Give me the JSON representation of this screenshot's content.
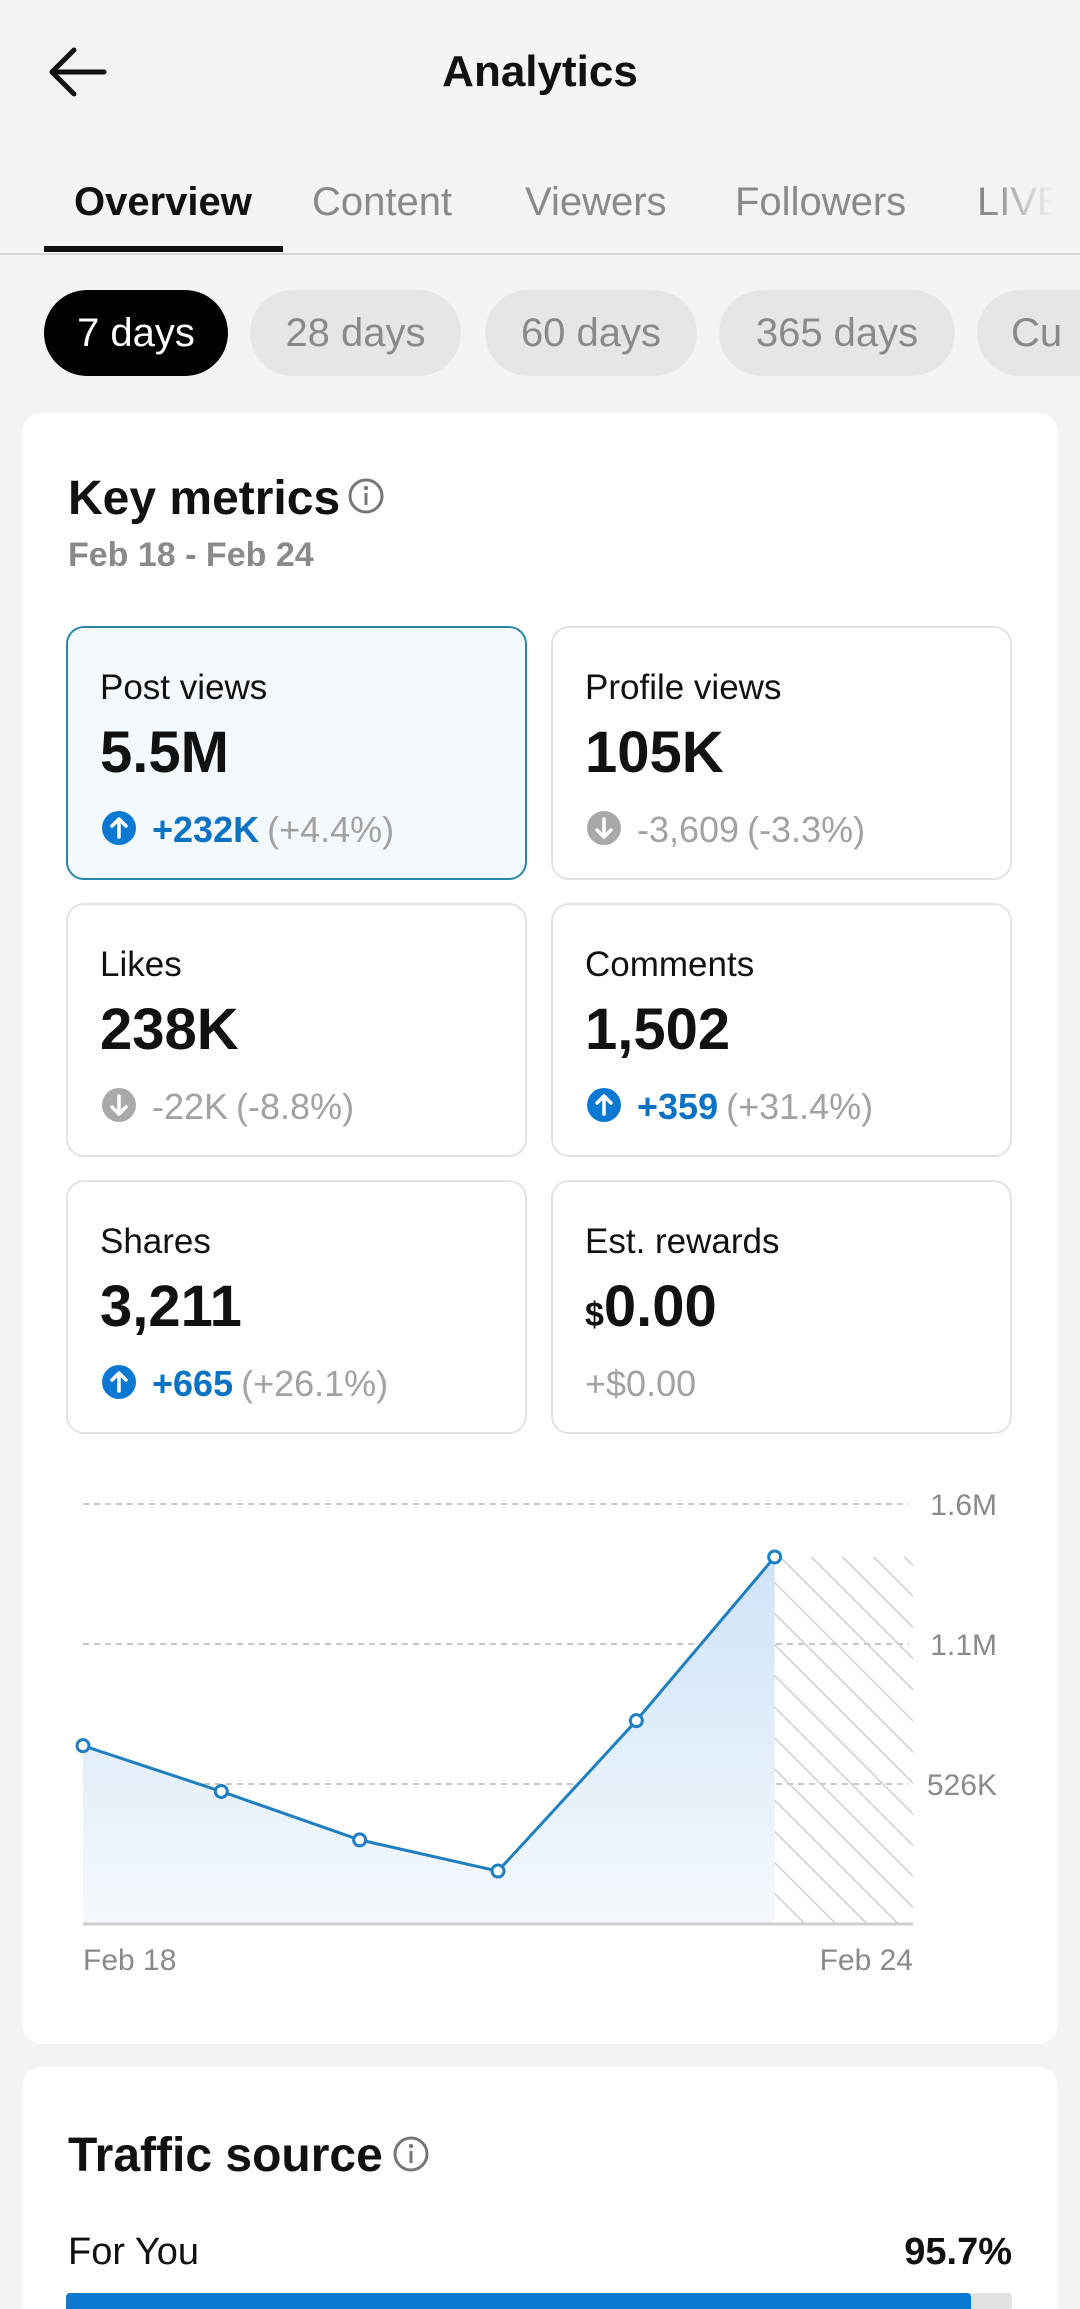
{
  "header": {
    "title": "Analytics"
  },
  "tabs": [
    "Overview",
    "Content",
    "Viewers",
    "Followers",
    "LIVE"
  ],
  "active_tab": 0,
  "date_ranges": [
    "7 days",
    "28 days",
    "60 days",
    "365 days",
    "Cu"
  ],
  "active_range": 0,
  "key_metrics": {
    "title": "Key metrics",
    "date_range": "Feb 18 - Feb 24",
    "selected_metric": 0,
    "metrics": [
      {
        "label": "Post views",
        "value": "5.5M",
        "change": "+232K",
        "change_pct": "(+4.4%)",
        "trend": "up"
      },
      {
        "label": "Profile views",
        "value": "105K",
        "change": "-3,609",
        "change_pct": "(-3.3%)",
        "trend": "down"
      },
      {
        "label": "Likes",
        "value": "238K",
        "change": "-22K",
        "change_pct": "(-8.8%)",
        "trend": "down"
      },
      {
        "label": "Comments",
        "value": "1,502",
        "change": "+359",
        "change_pct": "(+31.4%)",
        "trend": "up"
      },
      {
        "label": "Shares",
        "value": "3,211",
        "change": "+665",
        "change_pct": "(+26.1%)",
        "trend": "up"
      },
      {
        "label": "Est. rewards",
        "currency": "$",
        "value": "0.00",
        "change": "+$0.00",
        "trend": "flat"
      }
    ]
  },
  "chart_data": {
    "type": "line",
    "categories": [
      "Feb 18",
      null,
      null,
      null,
      null,
      null,
      "Feb 24"
    ],
    "values": [
      670000,
      498000,
      316000,
      199000,
      764000,
      1379000,
      null
    ],
    "color": "#1f7fc0",
    "ylim": [
      0,
      1578000
    ],
    "yticks": [
      {
        "value": 526000,
        "label": "526K"
      },
      {
        "value": 1052000,
        "label": "1.1M"
      },
      {
        "value": 1578000,
        "label": "1.6M"
      }
    ],
    "grid": true
  },
  "traffic_source": {
    "title": "Traffic source",
    "xlim": [
      0,
      100
    ],
    "items": [
      {
        "label": "For You",
        "value": 95.7,
        "value_label": "95.7%"
      }
    ]
  }
}
